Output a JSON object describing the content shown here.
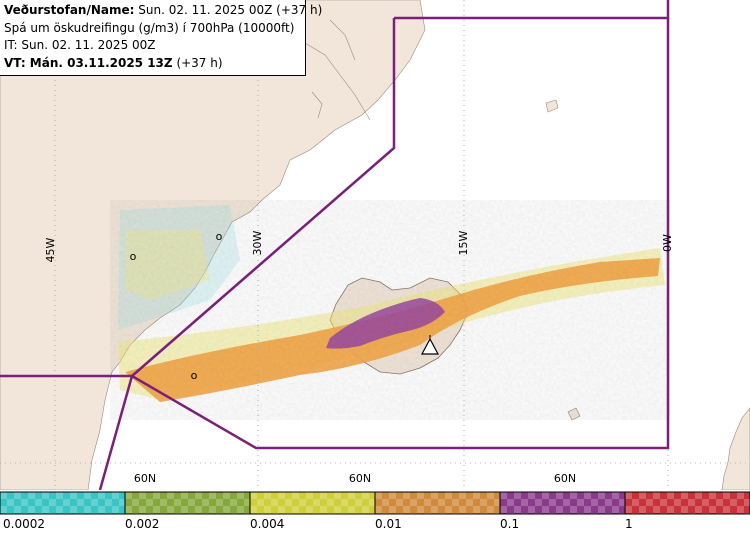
{
  "info": {
    "line1_label": "Veðurstofan/Name:",
    "line1_value": "Sun. 02. 11. 2025 00Z (+37 h)",
    "line2": "Spá um öskudreifingu (g/m3) í 700hPa (10000ft)",
    "line3": "IT: Sun. 02. 11. 2025 00Z",
    "line4_label": "VT: Mán. 03.11.2025 13Z",
    "line4_value": "(+37 h)"
  },
  "map": {
    "longitude_labels": [
      "45W",
      "30W",
      "15W",
      "0W"
    ],
    "latitude_labels": [
      "60N",
      "60N",
      "60N"
    ],
    "markers": [
      "o",
      "o",
      "o"
    ],
    "colors": {
      "ocean": "#ffffff",
      "land": "#f2e6da",
      "boundary": "#7a1f7a",
      "ash_orange": "#f5a94a",
      "ash_purple": "#9b4aa3",
      "ash_yellow": "#f2ea7a",
      "ash_cyan": "#9fe3e8"
    },
    "icons": [
      "volcano-triangle-icon"
    ]
  },
  "legend": {
    "colors": [
      "#39c5c5",
      "#86a83a",
      "#cfcf3c",
      "#cf8a3c",
      "#8a3a8a",
      "#c8323a"
    ],
    "labels": [
      "0.0002",
      "0.002",
      "0.004",
      "0.01",
      "0.1",
      "1"
    ]
  }
}
